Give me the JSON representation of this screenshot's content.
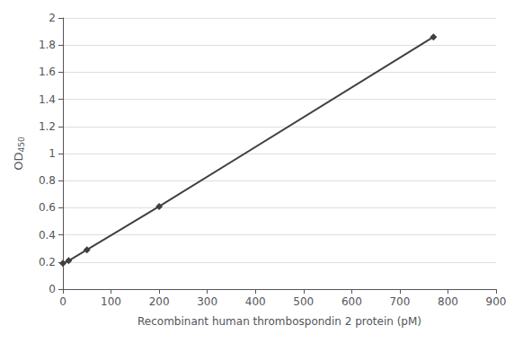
{
  "chart_data": {
    "type": "line",
    "x": [
      0,
      12,
      50,
      200,
      770
    ],
    "values": [
      0.19,
      0.21,
      0.29,
      0.61,
      1.86
    ],
    "xlabel": "Recombinant human thrombospondin 2 protein (pM)",
    "ylabel": "OD450",
    "xlim": [
      0,
      900
    ],
    "ylim": [
      0,
      2.0
    ],
    "xticks": [
      0,
      100,
      200,
      300,
      400,
      500,
      600,
      700,
      800,
      900
    ],
    "yticks": [
      0,
      0.2,
      0.4,
      0.6,
      0.8,
      1,
      1.2,
      1.4,
      1.6,
      1.8,
      2
    ],
    "color": "#404040",
    "marker": "diamond",
    "grid": true
  }
}
